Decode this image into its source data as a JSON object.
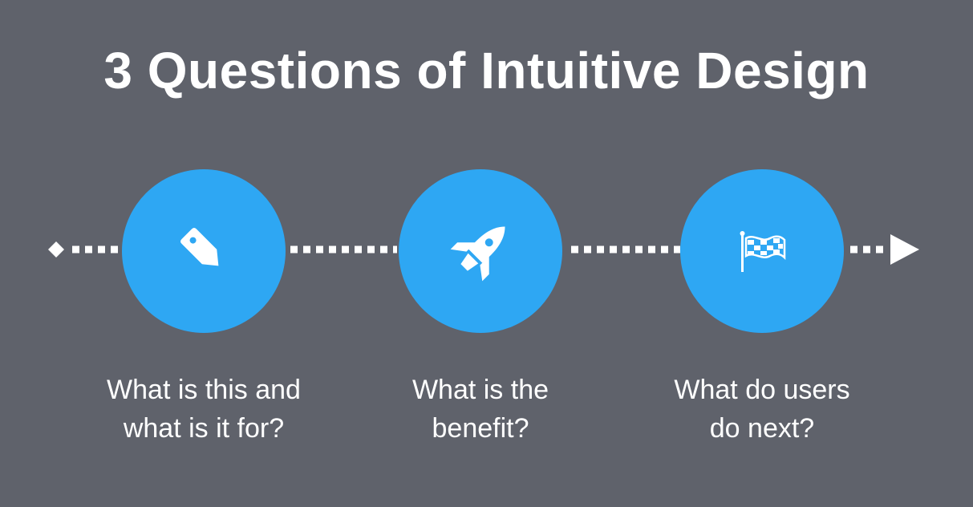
{
  "title": "3 Questions of Intuitive Design",
  "steps": [
    {
      "icon": "price-tag-icon",
      "label_line1": "What is this and",
      "label_line2": "what is it for?"
    },
    {
      "icon": "rocket-icon",
      "label_line1": "What is the",
      "label_line2": "benefit?"
    },
    {
      "icon": "checkered-flag-icon",
      "label_line1": "What do users",
      "label_line2": "do next?"
    }
  ],
  "colors": {
    "background": "#5f626b",
    "circle": "#2ea7f3",
    "line": "#ffffff"
  }
}
